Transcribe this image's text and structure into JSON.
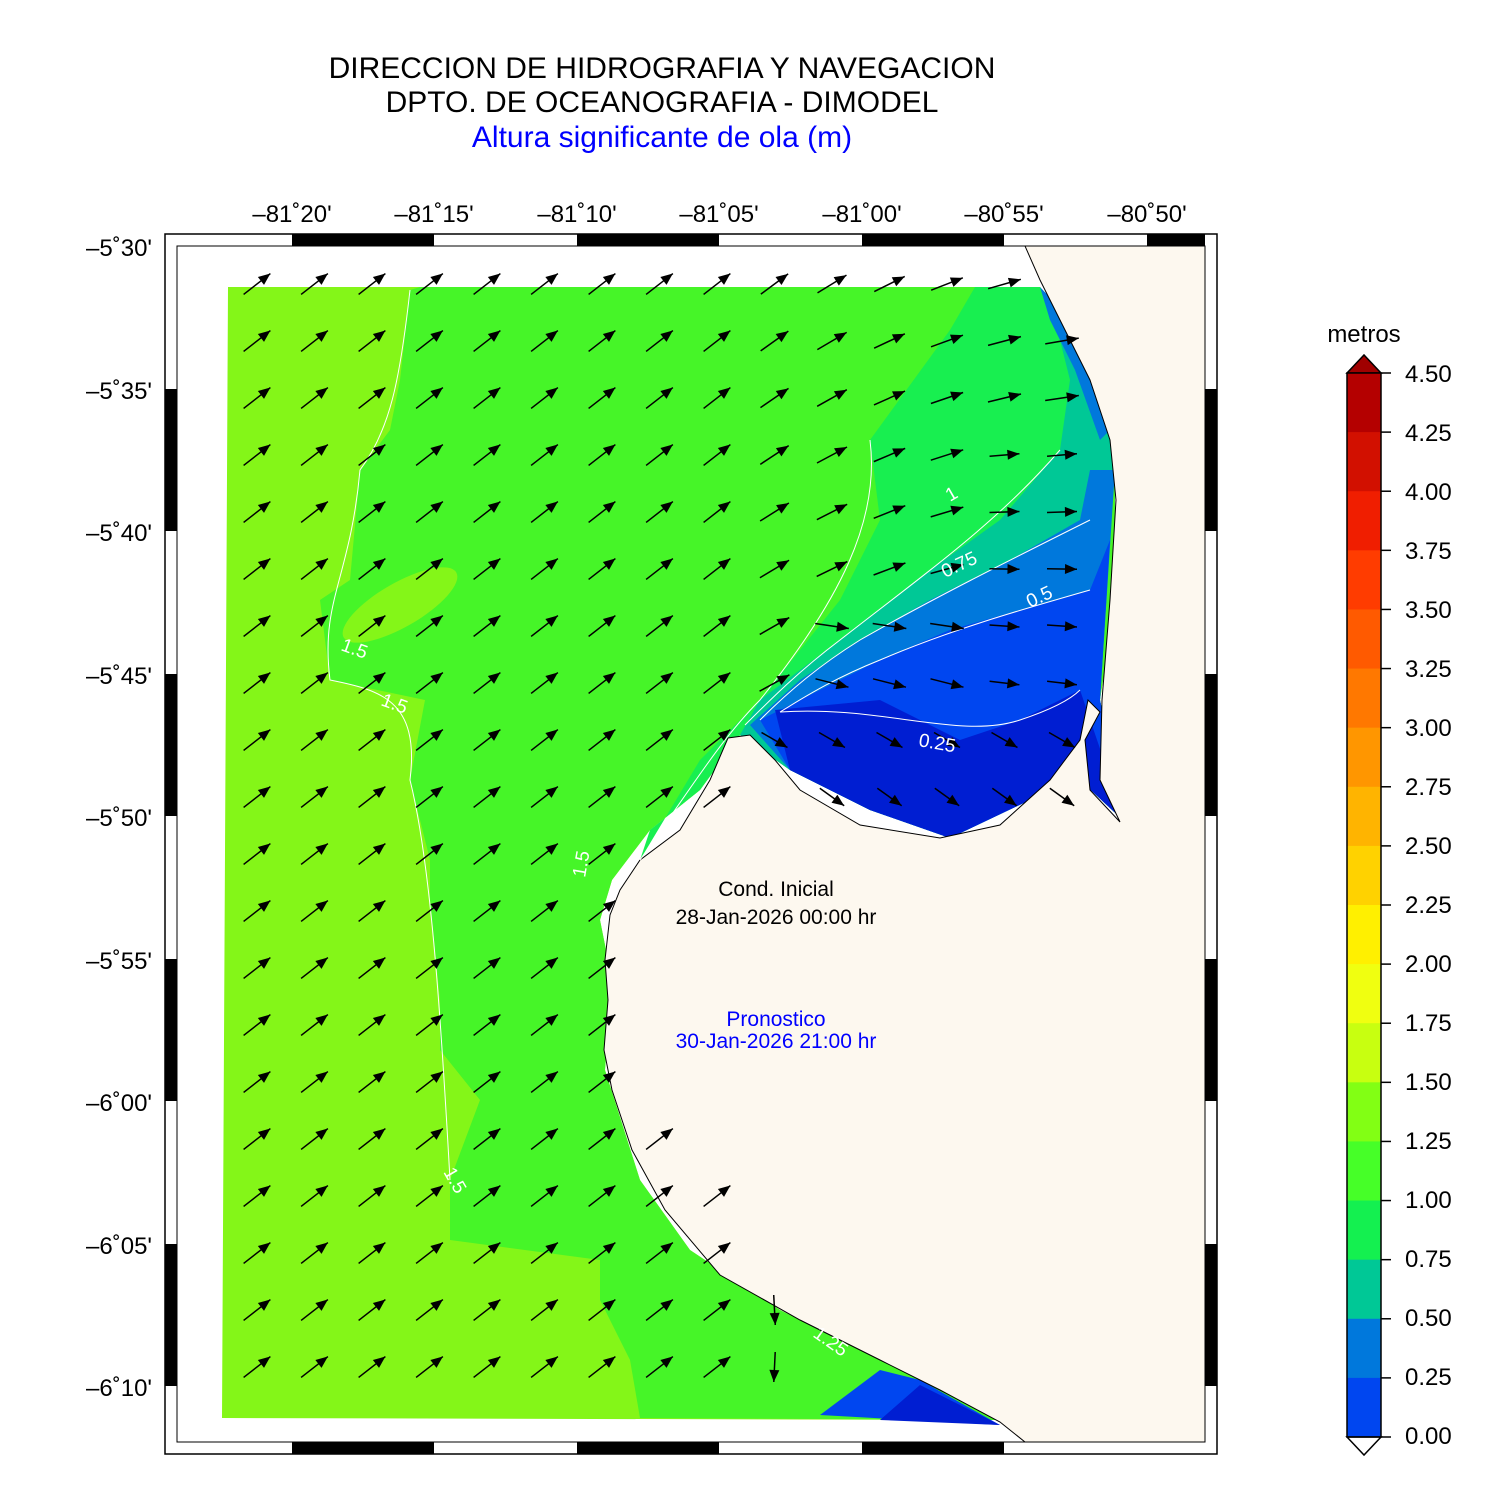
{
  "titles": {
    "line1": "DIRECCION DE HIDROGRAFIA Y NAVEGACION",
    "line2": "DPTO. DE OCEANOGRAFIA - DIMODEL",
    "line3": "Altura significante de ola (m)",
    "line3_color": "#0000ff"
  },
  "axes": {
    "lon_ticks": [
      "–81˚20'",
      "–81˚15'",
      "–81˚10'",
      "–81˚05'",
      "–81˚00'",
      "–80˚55'",
      "–80˚50'"
    ],
    "lat_ticks": [
      "–5˚30'",
      "–5˚35'",
      "–5˚40'",
      "–5˚45'",
      "–5˚50'",
      "–5˚55'",
      "–6˚00'",
      "–6˚05'",
      "–6˚10'"
    ]
  },
  "annotations": {
    "initial_label": "Cond. Inicial",
    "initial_time": "28-Jan-2026 00:00 hr",
    "forecast_label": "Pronostico",
    "forecast_time": "30-Jan-2026 21:00 hr",
    "forecast_color": "#0000ff"
  },
  "contour_labels": [
    "1.5",
    "1.5",
    "1.5",
    "1.5",
    "1",
    "0.75",
    "0.5",
    "0.25",
    "1.25"
  ],
  "colorbar": {
    "title": "metros",
    "ticks": [
      "4.50",
      "4.25",
      "4.00",
      "3.75",
      "3.50",
      "3.25",
      "3.00",
      "2.75",
      "2.50",
      "2.25",
      "2.00",
      "1.75",
      "1.50",
      "1.25",
      "1.00",
      "0.75",
      "0.50",
      "0.25",
      "0.00"
    ],
    "colors_top_to_bottom": [
      "#b40000",
      "#d21000",
      "#f01e00",
      "#ff3c00",
      "#ff5a00",
      "#ff7800",
      "#ff9600",
      "#ffb400",
      "#ffd200",
      "#fff000",
      "#f0ff10",
      "#c8ff10",
      "#82ff14",
      "#46ff28",
      "#14f050",
      "#00c896",
      "#0078dc",
      "#0046f0",
      "#001ed2"
    ],
    "over_color": "#a00000",
    "under_color": "#ffffff"
  },
  "colors": {
    "land": "#fdf8ef",
    "sea_outer": "#84f618",
    "sea_mid": "#46f528",
    "sea_inner": "#18ef50"
  }
}
